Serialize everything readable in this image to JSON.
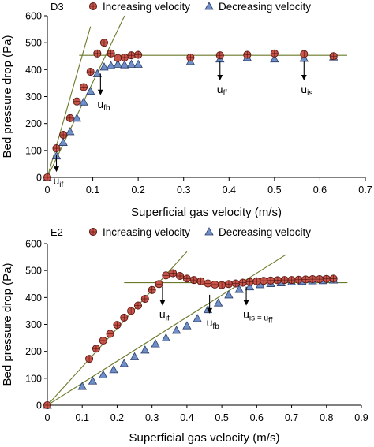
{
  "colors": {
    "increasing_fill": "#c9544a",
    "increasing_edge": "#5a1a14",
    "decreasing_fill": "#6e8fc7",
    "decreasing_edge": "#2c3f6b",
    "fit_line": "#6b7a2a",
    "axis": "#000000"
  },
  "chart_data": [
    {
      "type": "scatter",
      "panel_label": "D3",
      "xlabel": "Superficial gas velocity (m/s)",
      "ylabel": "Bed pressure drop (Pa)",
      "xlim": [
        0,
        0.7
      ],
      "ylim": [
        0,
        600
      ],
      "xticks": [
        "0",
        "0.1",
        "0.2",
        "0.3",
        "0.4",
        "0.5",
        "0.6",
        "0.7"
      ],
      "yticks": [
        "0",
        "100",
        "200",
        "300",
        "400",
        "500",
        "600"
      ],
      "grid": false,
      "legend_position": "top",
      "series": [
        {
          "name": "Increasing velocity",
          "marker": "circle",
          "x": [
            0.0,
            0.02,
            0.035,
            0.05,
            0.065,
            0.08,
            0.095,
            0.11,
            0.125,
            0.14,
            0.155,
            0.17,
            0.185,
            0.2,
            0.315,
            0.38,
            0.44,
            0.5,
            0.565,
            0.63
          ],
          "y": [
            0,
            108,
            158,
            220,
            282,
            335,
            392,
            460,
            500,
            460,
            443,
            445,
            453,
            455,
            445,
            453,
            455,
            460,
            458,
            450
          ]
        },
        {
          "name": "Decreasing velocity",
          "marker": "triangle",
          "x": [
            0.0,
            0.02,
            0.035,
            0.05,
            0.065,
            0.08,
            0.095,
            0.11,
            0.125,
            0.14,
            0.155,
            0.17,
            0.185,
            0.2,
            0.315,
            0.38,
            0.44,
            0.5,
            0.565,
            0.63
          ],
          "y": [
            0,
            80,
            130,
            170,
            220,
            280,
            320,
            385,
            410,
            415,
            420,
            418,
            420,
            420,
            430,
            440,
            445,
            440,
            442,
            447
          ]
        }
      ],
      "trend_lines": [
        {
          "from": [
            0.0,
            0.0
          ],
          "to": [
            0.095,
            560
          ]
        },
        {
          "from": [
            0.0,
            0.0
          ],
          "to": [
            0.17,
            600
          ]
        },
        {
          "from": [
            0.07,
            453
          ],
          "to": [
            0.66,
            453
          ]
        }
      ],
      "annotations": [
        {
          "label_main": "u",
          "label_sub": "if",
          "x": 0.02,
          "y_top": 85,
          "y_tip": 20
        },
        {
          "label_main": "u",
          "label_sub": "fb",
          "x": 0.117,
          "y_top": 385,
          "y_tip": 305
        },
        {
          "label_main": "u",
          "label_sub": "ff",
          "x": 0.38,
          "y_top": 430,
          "y_tip": 360
        },
        {
          "label_main": "u",
          "label_sub": "is",
          "x": 0.565,
          "y_top": 430,
          "y_tip": 360
        }
      ]
    },
    {
      "type": "scatter",
      "panel_label": "E2",
      "xlabel": "Superficial gas velocity (m/s)",
      "ylabel": "Bed pressure drop (Pa)",
      "xlim": [
        0,
        0.9
      ],
      "ylim": [
        0,
        600
      ],
      "xticks": [
        "0",
        "0.1",
        "0.2",
        "0.3",
        "0.4",
        "0.5",
        "0.6",
        "0.7",
        "0.8",
        "0.9"
      ],
      "yticks": [
        "0",
        "100",
        "200",
        "300",
        "400",
        "500",
        "600"
      ],
      "grid": false,
      "legend_position": "top",
      "series": [
        {
          "name": "Increasing velocity",
          "marker": "circle",
          "x": [
            0.0,
            0.12,
            0.14,
            0.16,
            0.18,
            0.2,
            0.22,
            0.24,
            0.26,
            0.28,
            0.3,
            0.32,
            0.34,
            0.36,
            0.38,
            0.4,
            0.42,
            0.44,
            0.46,
            0.48,
            0.5,
            0.52,
            0.54,
            0.56,
            0.58,
            0.6,
            0.62,
            0.64,
            0.66,
            0.68,
            0.7,
            0.72,
            0.74,
            0.76,
            0.78,
            0.8,
            0.82
          ],
          "y": [
            0,
            172,
            210,
            240,
            265,
            298,
            325,
            350,
            370,
            395,
            428,
            450,
            482,
            490,
            480,
            470,
            465,
            460,
            452,
            448,
            446,
            450,
            452,
            455,
            458,
            460,
            462,
            463,
            464,
            465,
            465,
            466,
            467,
            468,
            468,
            469,
            470
          ]
        },
        {
          "name": "Decreasing velocity",
          "marker": "triangle",
          "x": [
            0.0,
            0.1,
            0.13,
            0.16,
            0.19,
            0.22,
            0.25,
            0.28,
            0.31,
            0.34,
            0.37,
            0.4,
            0.43,
            0.46,
            0.49,
            0.52,
            0.55,
            0.58,
            0.61,
            0.64,
            0.67,
            0.7,
            0.73,
            0.76,
            0.79,
            0.82
          ],
          "y": [
            0,
            70,
            90,
            113,
            132,
            155,
            180,
            205,
            228,
            250,
            278,
            295,
            322,
            355,
            380,
            410,
            430,
            440,
            448,
            452,
            455,
            458,
            460,
            462,
            463,
            465
          ]
        }
      ],
      "trend_lines": [
        {
          "from": [
            0.0,
            0.0
          ],
          "to": [
            0.4,
            570
          ]
        },
        {
          "from": [
            0.0,
            0.0
          ],
          "to": [
            0.685,
            560
          ]
        },
        {
          "from": [
            0.22,
            455
          ],
          "to": [
            0.86,
            455
          ]
        }
      ],
      "annotations": [
        {
          "label_main": "u",
          "label_sub": "if",
          "x": 0.33,
          "y_top": 440,
          "y_tip": 370
        },
        {
          "label_main": "u",
          "label_sub": "fb",
          "x": 0.465,
          "y_top": 410,
          "y_tip": 340
        },
        {
          "label_main": "u",
          "label_sub": "is = u",
          "label_sub2": "ff",
          "x": 0.57,
          "y_top": 440,
          "y_tip": 370
        }
      ]
    }
  ]
}
